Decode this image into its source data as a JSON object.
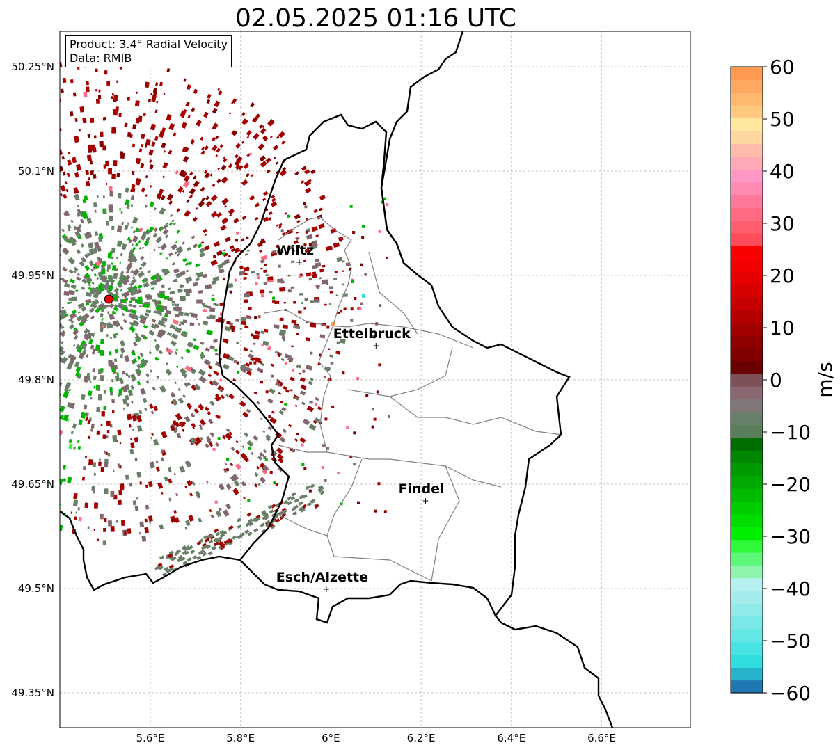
{
  "title": "02.05.2025 01:16 UTC",
  "info": {
    "product": "Product: 3.4° Radial Velocity",
    "data": "Data: RMIB"
  },
  "map_extent": {
    "lon": [
      5.4,
      6.8
    ],
    "lat": [
      49.3,
      50.3
    ]
  },
  "lat_ticks": [
    {
      "value": 50.25,
      "label": "50.25°N"
    },
    {
      "value": 50.1,
      "label": "50.1°N"
    },
    {
      "value": 49.95,
      "label": "49.95°N"
    },
    {
      "value": 49.8,
      "label": "49.8°N"
    },
    {
      "value": 49.65,
      "label": "49.65°N"
    },
    {
      "value": 49.5,
      "label": "49.5°N"
    },
    {
      "value": 49.35,
      "label": "49.35°N"
    }
  ],
  "lon_ticks": [
    {
      "value": 5.6,
      "label": "5.6°E"
    },
    {
      "value": 5.8,
      "label": "5.8°E"
    },
    {
      "value": 6.0,
      "label": "6°E"
    },
    {
      "value": 6.2,
      "label": "6.2°E"
    },
    {
      "value": 6.4,
      "label": "6.4°E"
    },
    {
      "value": 6.6,
      "label": "6.6°E"
    }
  ],
  "cities": [
    {
      "name": "Wiltz",
      "lon": 5.93,
      "lat": 49.97
    },
    {
      "name": "Ettelbruck",
      "lon": 6.1,
      "lat": 49.85
    },
    {
      "name": "Findel",
      "lon": 6.21,
      "lat": 49.627
    },
    {
      "name": "Esch/Alzette",
      "lon": 5.99,
      "lat": 49.5
    }
  ],
  "radar_site": {
    "lon": 5.505,
    "lat": 49.915,
    "color": "#e8000b"
  },
  "colorbar": {
    "label": "m/s",
    "min": -60,
    "max": 60,
    "ticks": [
      {
        "value": 60,
        "label": "60"
      },
      {
        "value": 50,
        "label": "50"
      },
      {
        "value": 40,
        "label": "40"
      },
      {
        "value": 30,
        "label": "30"
      },
      {
        "value": 20,
        "label": "20"
      },
      {
        "value": 10,
        "label": "10"
      },
      {
        "value": 0,
        "label": "0"
      },
      {
        "value": -10,
        "label": "−10"
      },
      {
        "value": -20,
        "label": "−20"
      },
      {
        "value": -30,
        "label": "−30"
      },
      {
        "value": -40,
        "label": "−40"
      },
      {
        "value": -50,
        "label": "−50"
      },
      {
        "value": -60,
        "label": "−60"
      }
    ],
    "colors": [
      "#1f77b4",
      "#27b3cc",
      "#30dede",
      "#4ae3e3",
      "#62e6e6",
      "#7ae8e8",
      "#90eaea",
      "#a4ecec",
      "#b6efef",
      "#8ff5ad",
      "#5ef77a",
      "#30f83a",
      "#00ee00",
      "#00dd00",
      "#00cc00",
      "#00bb00",
      "#00aa00",
      "#009900",
      "#008600",
      "#006e00",
      "#5a7e5a",
      "#68806a",
      "#807878",
      "#8a6872",
      "#7e5058",
      "#6b0000",
      "#800000",
      "#900000",
      "#a30000",
      "#b50000",
      "#c60000",
      "#d60000",
      "#e60000",
      "#f20000",
      "#fa0000",
      "#ff4c5a",
      "#ff5e6c",
      "#ff6a82",
      "#ff7a9a",
      "#ff8ab4",
      "#ff98c6",
      "#ffaab4",
      "#ffbcaa",
      "#ffd8a0",
      "#ffe7a0",
      "#ffca80",
      "#ffb870",
      "#ffa860",
      "#ff9850"
    ]
  },
  "velocity_palette": {
    "dark_red": "#a30000",
    "maroon": "#800000",
    "grey_green": "#6a7f68",
    "grey_mauve": "#82686e",
    "green": "#00b400",
    "bright_green": "#30f83a",
    "pink": "#ff6a82",
    "cyan": "#30dede",
    "orange": "#ffa860"
  }
}
